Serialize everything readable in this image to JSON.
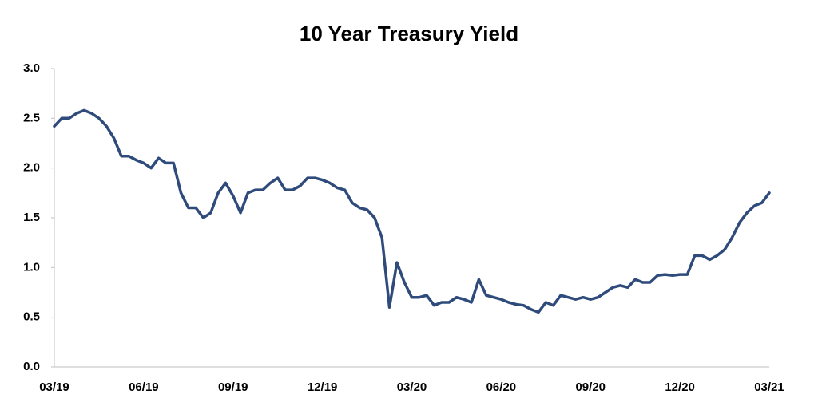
{
  "chart_data": {
    "type": "line",
    "title": "10 Year Treasury Yield",
    "categories": [
      "03/19",
      null,
      null,
      null,
      null,
      null,
      null,
      null,
      null,
      null,
      null,
      null,
      "06/19",
      null,
      null,
      null,
      null,
      null,
      null,
      null,
      null,
      null,
      null,
      null,
      "09/19",
      null,
      null,
      null,
      null,
      null,
      null,
      null,
      null,
      null,
      null,
      null,
      "12/19",
      null,
      null,
      null,
      null,
      null,
      null,
      null,
      null,
      null,
      null,
      null,
      "03/20",
      null,
      null,
      null,
      null,
      null,
      null,
      null,
      null,
      null,
      null,
      null,
      "06/20",
      null,
      null,
      null,
      null,
      null,
      null,
      null,
      null,
      null,
      null,
      null,
      "09/20",
      null,
      null,
      null,
      null,
      null,
      null,
      null,
      null,
      null,
      null,
      null,
      "12/20",
      null,
      null,
      null,
      null,
      null,
      null,
      null,
      null,
      null,
      null,
      null,
      "03/21"
    ],
    "series": [
      {
        "name": "10 Year Treasury Yield",
        "color": "#2f4b7c",
        "values": [
          2.42,
          2.5,
          2.5,
          2.55,
          2.58,
          2.55,
          2.5,
          2.42,
          2.3,
          2.12,
          2.12,
          2.08,
          2.05,
          2.0,
          2.1,
          2.05,
          2.05,
          1.75,
          1.6,
          1.6,
          1.5,
          1.55,
          1.75,
          1.85,
          1.72,
          1.55,
          1.75,
          1.78,
          1.78,
          1.85,
          1.9,
          1.78,
          1.78,
          1.82,
          1.9,
          1.9,
          1.88,
          1.85,
          1.8,
          1.78,
          1.65,
          1.6,
          1.58,
          1.5,
          1.3,
          0.6,
          1.05,
          0.85,
          0.7,
          0.7,
          0.72,
          0.62,
          0.65,
          0.65,
          0.7,
          0.68,
          0.65,
          0.88,
          0.72,
          0.7,
          0.68,
          0.65,
          0.63,
          0.62,
          0.58,
          0.55,
          0.65,
          0.62,
          0.72,
          0.7,
          0.68,
          0.7,
          0.68,
          0.7,
          0.75,
          0.8,
          0.82,
          0.8,
          0.88,
          0.85,
          0.85,
          0.92,
          0.93,
          0.92,
          0.93,
          0.93,
          1.12,
          1.12,
          1.08,
          1.12,
          1.18,
          1.3,
          1.45,
          1.55,
          1.62,
          1.65,
          1.75
        ]
      }
    ],
    "ylim": [
      0,
      3
    ],
    "yticks": [
      {
        "value": 0,
        "label": "0.0"
      },
      0.5,
      {
        "value": 1,
        "label": "1.0"
      },
      1.5,
      {
        "value": 2,
        "label": "2.0"
      },
      2.5,
      {
        "value": 3,
        "label": "3.0"
      }
    ],
    "grid": false
  }
}
